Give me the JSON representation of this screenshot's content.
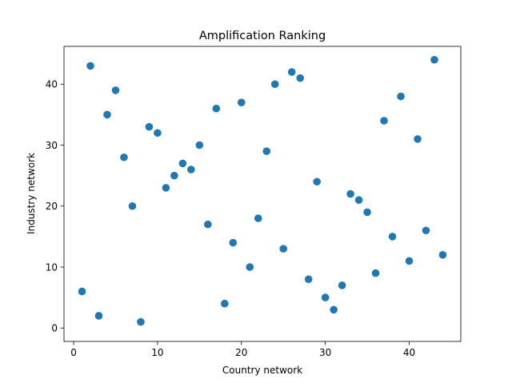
{
  "chart_data": {
    "type": "scatter",
    "title": "Amplification Ranking",
    "xlabel": "Country network",
    "ylabel": "Industry network",
    "xlim": [
      -1.15,
      46.15
    ],
    "ylim": [
      -2.2,
      46.2
    ],
    "xticks": [
      0,
      10,
      20,
      30,
      40
    ],
    "yticks": [
      0,
      10,
      20,
      30,
      40
    ],
    "grid": false,
    "marker_color": "#1f77b4",
    "points": [
      {
        "x": 1,
        "y": 6
      },
      {
        "x": 2,
        "y": 43
      },
      {
        "x": 3,
        "y": 2
      },
      {
        "x": 4,
        "y": 35
      },
      {
        "x": 5,
        "y": 39
      },
      {
        "x": 6,
        "y": 28
      },
      {
        "x": 7,
        "y": 20
      },
      {
        "x": 8,
        "y": 1
      },
      {
        "x": 9,
        "y": 33
      },
      {
        "x": 10,
        "y": 32
      },
      {
        "x": 11,
        "y": 23
      },
      {
        "x": 12,
        "y": 25
      },
      {
        "x": 13,
        "y": 27
      },
      {
        "x": 14,
        "y": 26
      },
      {
        "x": 15,
        "y": 30
      },
      {
        "x": 16,
        "y": 17
      },
      {
        "x": 17,
        "y": 36
      },
      {
        "x": 18,
        "y": 4
      },
      {
        "x": 19,
        "y": 14
      },
      {
        "x": 20,
        "y": 37
      },
      {
        "x": 21,
        "y": 10
      },
      {
        "x": 22,
        "y": 18
      },
      {
        "x": 23,
        "y": 29
      },
      {
        "x": 24,
        "y": 40
      },
      {
        "x": 25,
        "y": 13
      },
      {
        "x": 26,
        "y": 42
      },
      {
        "x": 27,
        "y": 41
      },
      {
        "x": 28,
        "y": 8
      },
      {
        "x": 29,
        "y": 24
      },
      {
        "x": 30,
        "y": 5
      },
      {
        "x": 31,
        "y": 3
      },
      {
        "x": 32,
        "y": 7
      },
      {
        "x": 33,
        "y": 22
      },
      {
        "x": 34,
        "y": 21
      },
      {
        "x": 35,
        "y": 19
      },
      {
        "x": 36,
        "y": 9
      },
      {
        "x": 37,
        "y": 34
      },
      {
        "x": 38,
        "y": 15
      },
      {
        "x": 39,
        "y": 38
      },
      {
        "x": 40,
        "y": 11
      },
      {
        "x": 41,
        "y": 31
      },
      {
        "x": 42,
        "y": 16
      },
      {
        "x": 43,
        "y": 44
      },
      {
        "x": 44,
        "y": 12
      }
    ]
  }
}
